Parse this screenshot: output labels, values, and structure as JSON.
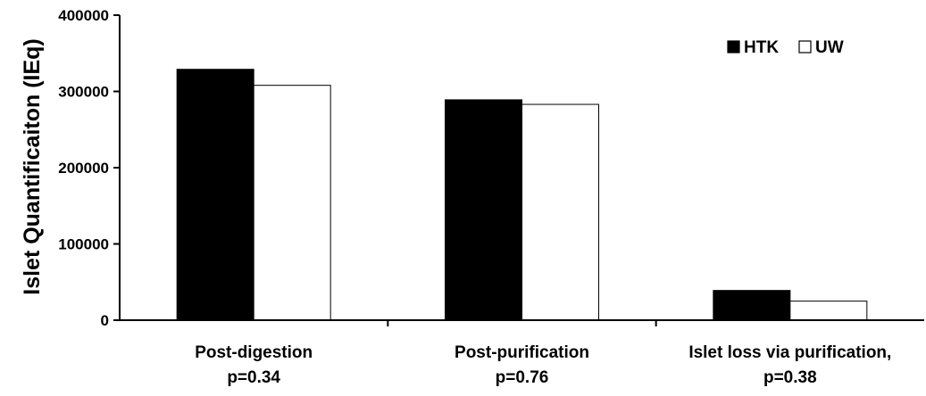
{
  "chart_data": {
    "type": "bar",
    "title": "",
    "xlabel": "",
    "ylabel": "Islet Quantificaiton (IEq)",
    "ylim": [
      0,
      400000
    ],
    "yticks": [
      "0",
      "100000",
      "200000",
      "300000",
      "400000"
    ],
    "categories": [
      [
        "Post-digestion",
        "p=0.34"
      ],
      [
        "Post-purification",
        "p=0.76"
      ],
      [
        "Islet loss via purification,",
        "p=0.38"
      ]
    ],
    "series": [
      {
        "name": "HTK",
        "values": [
          329000,
          289000,
          39000
        ],
        "color": "#000000"
      },
      {
        "name": "UW",
        "values": [
          308000,
          283000,
          25000
        ],
        "color": "#ffffff"
      }
    ],
    "legend_position": "top-right",
    "grid": false
  }
}
